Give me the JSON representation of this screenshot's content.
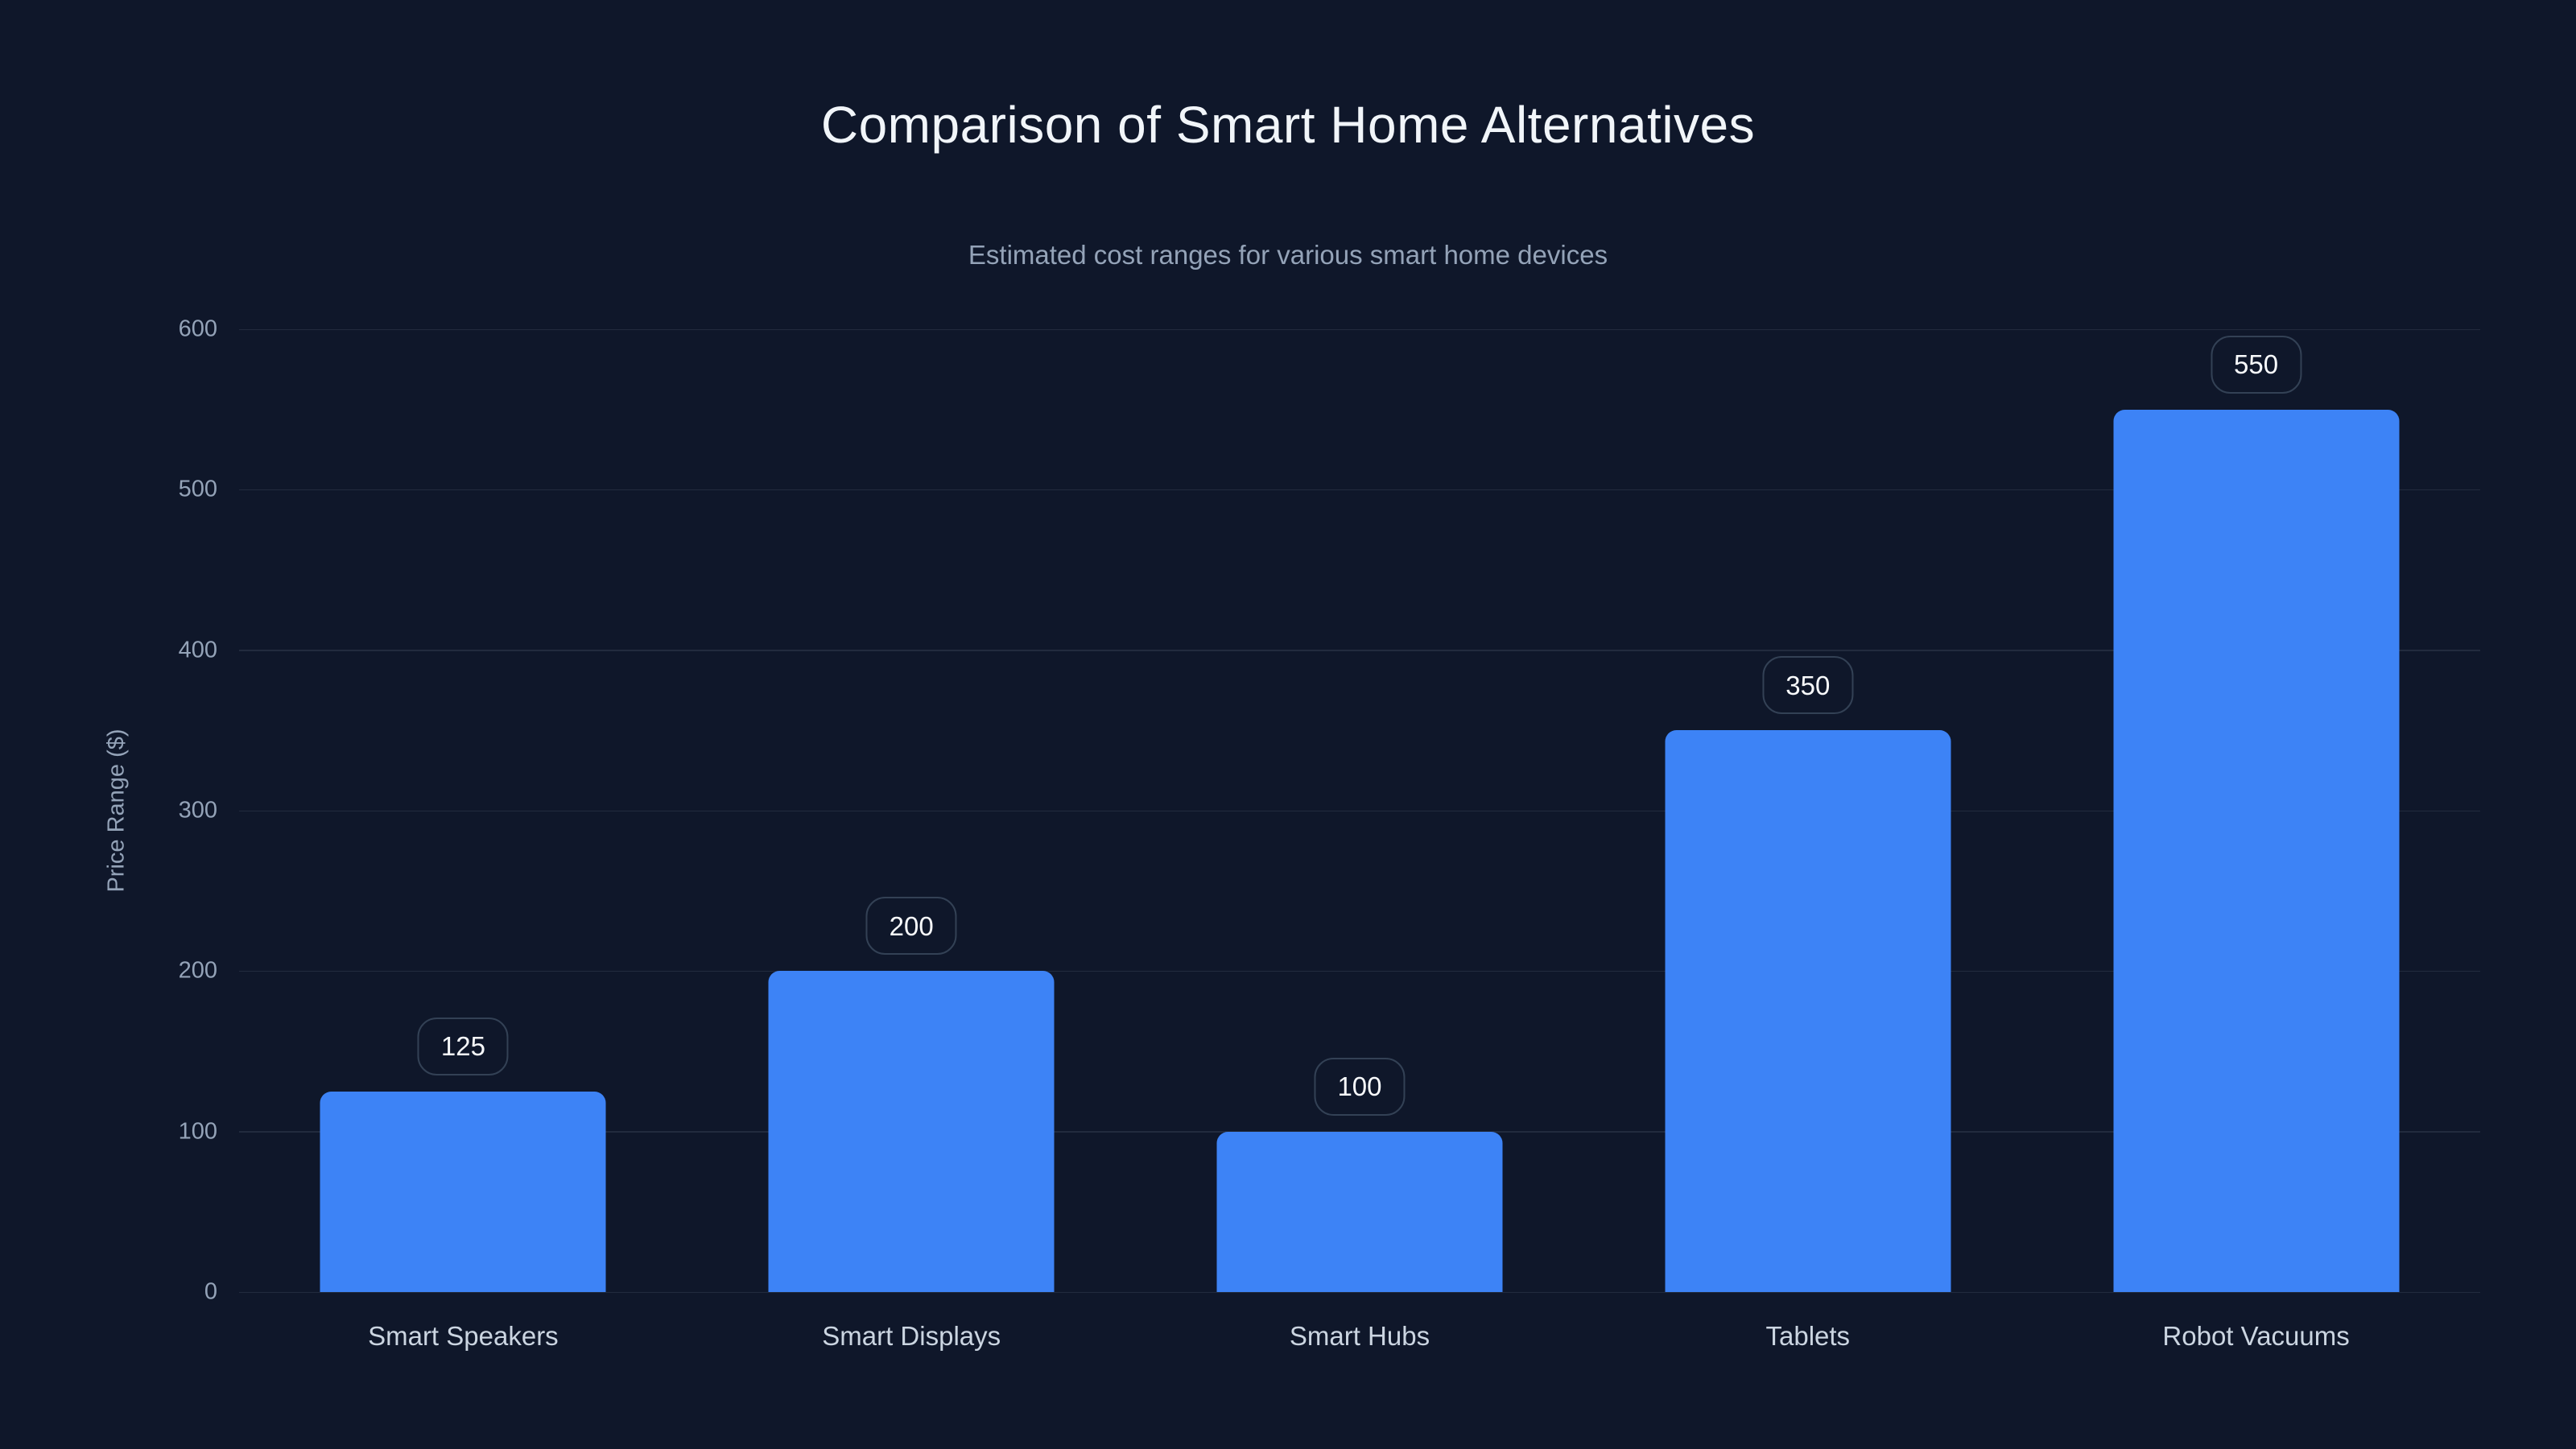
{
  "chart_data": {
    "type": "bar",
    "title": "Comparison of Smart Home Alternatives",
    "subtitle": "Estimated cost ranges for various smart home devices",
    "categories": [
      "Smart Speakers",
      "Smart Displays",
      "Smart Hubs",
      "Tablets",
      "Robot Vacuums"
    ],
    "values": [
      125,
      200,
      100,
      350,
      550
    ],
    "value_labels": [
      "125",
      "200",
      "100",
      "350",
      "550"
    ],
    "xlabel": "",
    "ylabel": "Price Range ($)",
    "ylim": [
      0,
      600
    ],
    "yticks": [
      "0",
      "100",
      "200",
      "300",
      "400",
      "500",
      "600"
    ],
    "grid": true,
    "legend": false
  },
  "theme": {
    "background": "#0f172a",
    "bar_color": "#3d83f6",
    "grid_color": "rgba(148,163,184,0.15)",
    "title_color": "#f1f5f9",
    "subtitle_color": "#94a3b8",
    "tick_color": "#94a3b8",
    "category_color": "#cbd5e1",
    "badge_text_color": "#f8fafc",
    "badge_border_color": "#334155"
  }
}
